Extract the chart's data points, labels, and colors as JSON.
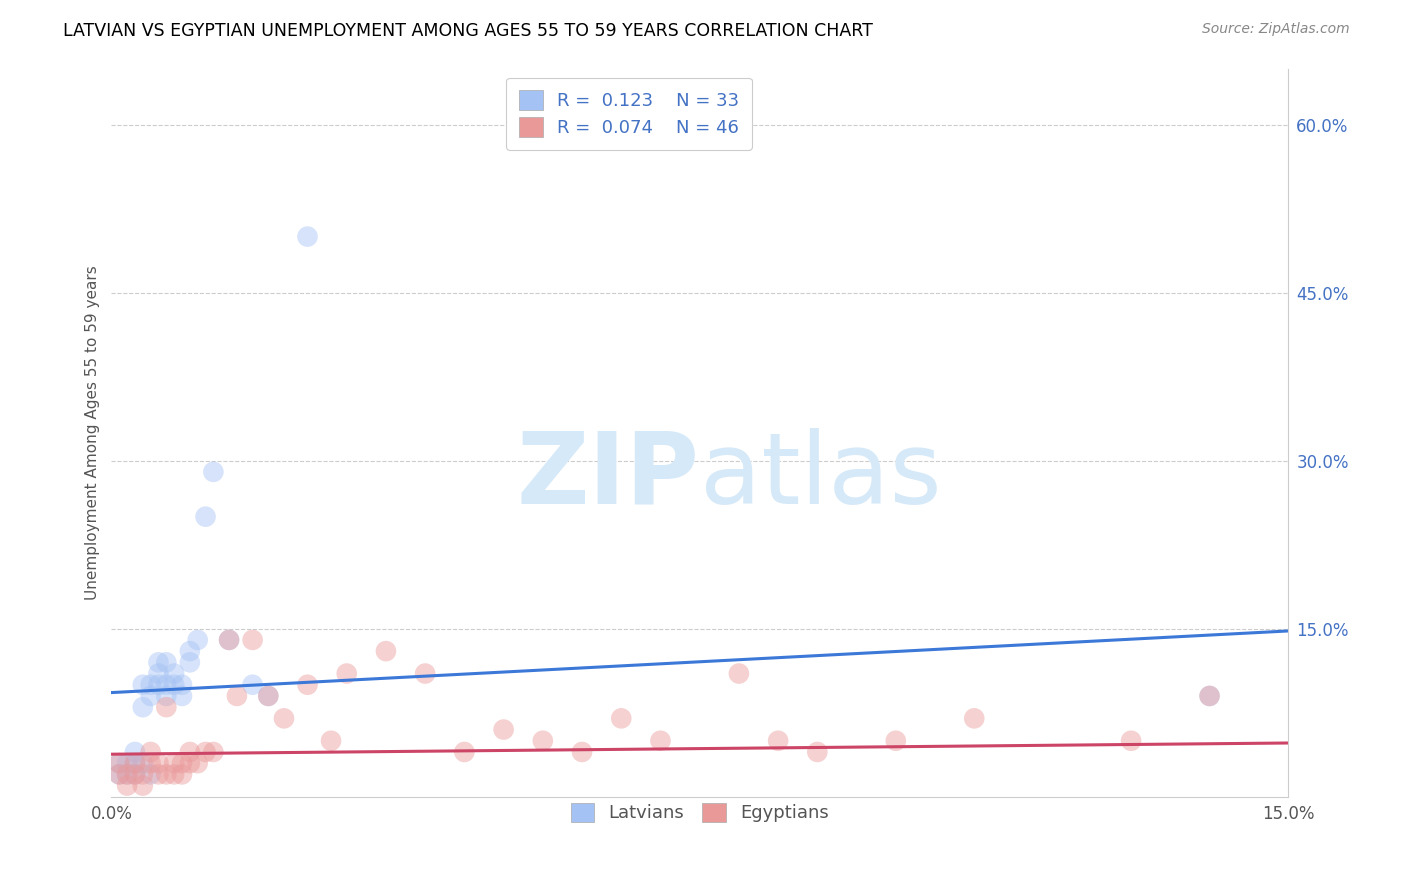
{
  "title": "LATVIAN VS EGYPTIAN UNEMPLOYMENT AMONG AGES 55 TO 59 YEARS CORRELATION CHART",
  "source": "Source: ZipAtlas.com",
  "ylabel": "Unemployment Among Ages 55 to 59 years",
  "xlim": [
    0.0,
    0.15
  ],
  "ylim": [
    0.0,
    0.65
  ],
  "latvian_color": "#a4c2f4",
  "egyptian_color": "#ea9999",
  "latvian_line_color": "#3c78d8",
  "egyptian_line_color": "#cc4466",
  "latvian_color_fill": "#a4c2f4",
  "egyptian_color_fill": "#ea9999",
  "background_color": "#ffffff",
  "watermark_color": "#d6e9f8",
  "grid_color": "#cccccc",
  "R_latvian": 0.123,
  "N_latvian": 33,
  "R_egyptian": 0.074,
  "N_egyptian": 46,
  "latvian_x": [
    0.001,
    0.001,
    0.002,
    0.002,
    0.003,
    0.003,
    0.003,
    0.004,
    0.004,
    0.004,
    0.005,
    0.005,
    0.005,
    0.006,
    0.006,
    0.006,
    0.007,
    0.007,
    0.007,
    0.008,
    0.008,
    0.009,
    0.009,
    0.01,
    0.01,
    0.011,
    0.012,
    0.013,
    0.015,
    0.018,
    0.02,
    0.025,
    0.14
  ],
  "latvian_y": [
    0.02,
    0.03,
    0.02,
    0.03,
    0.02,
    0.04,
    0.03,
    0.03,
    0.08,
    0.1,
    0.02,
    0.09,
    0.1,
    0.1,
    0.11,
    0.12,
    0.09,
    0.1,
    0.12,
    0.1,
    0.11,
    0.1,
    0.09,
    0.12,
    0.13,
    0.14,
    0.25,
    0.29,
    0.14,
    0.1,
    0.09,
    0.5,
    0.09
  ],
  "egyptian_x": [
    0.001,
    0.001,
    0.002,
    0.002,
    0.003,
    0.003,
    0.004,
    0.004,
    0.005,
    0.005,
    0.006,
    0.006,
    0.007,
    0.007,
    0.008,
    0.008,
    0.009,
    0.009,
    0.01,
    0.01,
    0.011,
    0.012,
    0.013,
    0.015,
    0.016,
    0.018,
    0.02,
    0.022,
    0.025,
    0.028,
    0.03,
    0.035,
    0.04,
    0.045,
    0.05,
    0.055,
    0.06,
    0.065,
    0.07,
    0.08,
    0.085,
    0.09,
    0.1,
    0.11,
    0.13,
    0.14
  ],
  "egyptian_y": [
    0.02,
    0.03,
    0.01,
    0.02,
    0.02,
    0.03,
    0.01,
    0.02,
    0.03,
    0.04,
    0.02,
    0.03,
    0.08,
    0.02,
    0.02,
    0.03,
    0.02,
    0.03,
    0.04,
    0.03,
    0.03,
    0.04,
    0.04,
    0.14,
    0.09,
    0.14,
    0.09,
    0.07,
    0.1,
    0.05,
    0.11,
    0.13,
    0.11,
    0.04,
    0.06,
    0.05,
    0.04,
    0.07,
    0.05,
    0.11,
    0.05,
    0.04,
    0.05,
    0.07,
    0.05,
    0.09
  ],
  "lat_line_x0": 0.0,
  "lat_line_y0": 0.093,
  "lat_line_x1": 0.15,
  "lat_line_y1": 0.148,
  "egy_line_x0": 0.0,
  "egy_line_y0": 0.038,
  "egy_line_x1": 0.15,
  "egy_line_y1": 0.048
}
